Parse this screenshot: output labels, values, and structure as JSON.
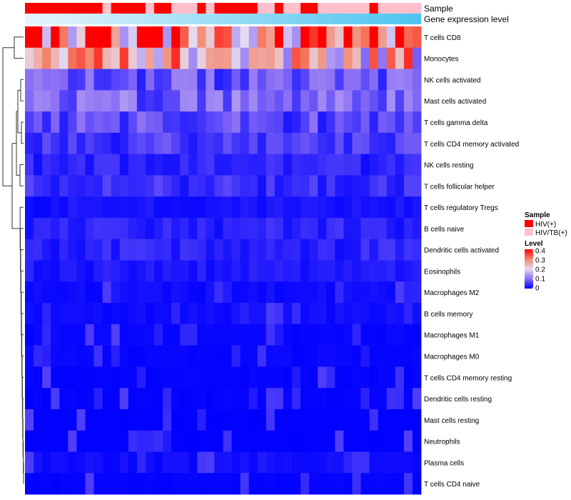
{
  "chart_data": {
    "type": "heatmap",
    "title": "",
    "annotation_labels": [
      "Sample",
      "Gene expression level"
    ],
    "rows": [
      "T cells CD8",
      "Monocytes",
      "NK cells activated",
      "Mast cells activated",
      "T cells gamma delta",
      "T cells CD4 memory activated",
      "NK cells resting",
      "T cells follicular helper",
      "T cells regulatory  Tregs",
      "B cells naive",
      "Dendritic cells activated",
      "Eosinophils",
      "Macrophages M2",
      "B cells memory",
      "Macrophages M1",
      "Macrophages M0",
      "T cells CD4 memory resting",
      "Dendritic cells resting",
      "Mast cells resting",
      "Neutrophils",
      "Plasma cells",
      "T cells CD4 naive"
    ],
    "n_columns": 46,
    "sample_groups": [
      "HIV(+)",
      "HIV(+)",
      "HIV(+)",
      "HIV(+)",
      "HIV(+)",
      "HIV(+)",
      "HIV(+)",
      "HIV(+)",
      "HIV(+)",
      "HIV/TB(+)",
      "HIV(+)",
      "HIV(+)",
      "HIV(+)",
      "HIV(+)",
      "HIV/TB(+)",
      "HIV(+)",
      "HIV(+)",
      "HIV/TB(+)",
      "HIV/TB(+)",
      "HIV/TB(+)",
      "HIV(+)",
      "HIV/TB(+)",
      "HIV(+)",
      "HIV(+)",
      "HIV(+)",
      "HIV(+)",
      "HIV(+)",
      "HIV/TB(+)",
      "HIV/TB(+)",
      "HIV(+)",
      "HIV/TB(+)",
      "HIV/TB(+)",
      "HIV(+)",
      "HIV(+)",
      "HIV/TB(+)",
      "HIV/TB(+)",
      "HIV/TB(+)",
      "HIV/TB(+)",
      "HIV/TB(+)",
      "HIV/TB(+)",
      "HIV(+)",
      "HIV/TB(+)",
      "HIV/TB(+)",
      "HIV/TB(+)",
      "HIV/TB(+)",
      "HIV/TB(+)"
    ],
    "row_levels": [
      0.3,
      0.22,
      0.07,
      0.08,
      0.06,
      0.05,
      0.03,
      0.04,
      0.015,
      0.03,
      0.03,
      0.02,
      0.01,
      0.01,
      0.005,
      0.005,
      0.003,
      0.003,
      0.001,
      0.001,
      0.01,
      0.003
    ],
    "color_scale": {
      "stops": [
        0,
        0.1,
        0.2,
        0.3,
        0.4
      ],
      "colors": [
        "#0000ff",
        "#8a6ef5",
        "#e6dcf0",
        "#f4876e",
        "#ff0000"
      ]
    },
    "legend": {
      "sample_title": "Sample",
      "sample_entries": [
        {
          "label": "HIV(+)",
          "color": "#ff0000"
        },
        {
          "label": "HIV/TB(+)",
          "color": "#ffc0cb"
        }
      ],
      "level_title": "Level",
      "level_ticks": [
        "0.4",
        "0.3",
        "0.2",
        "0.1",
        "0"
      ],
      "placement": "right"
    },
    "expression_bar_colors": [
      "#e8f5fb",
      "#4cc4f0"
    ],
    "dendrogram": "left"
  }
}
